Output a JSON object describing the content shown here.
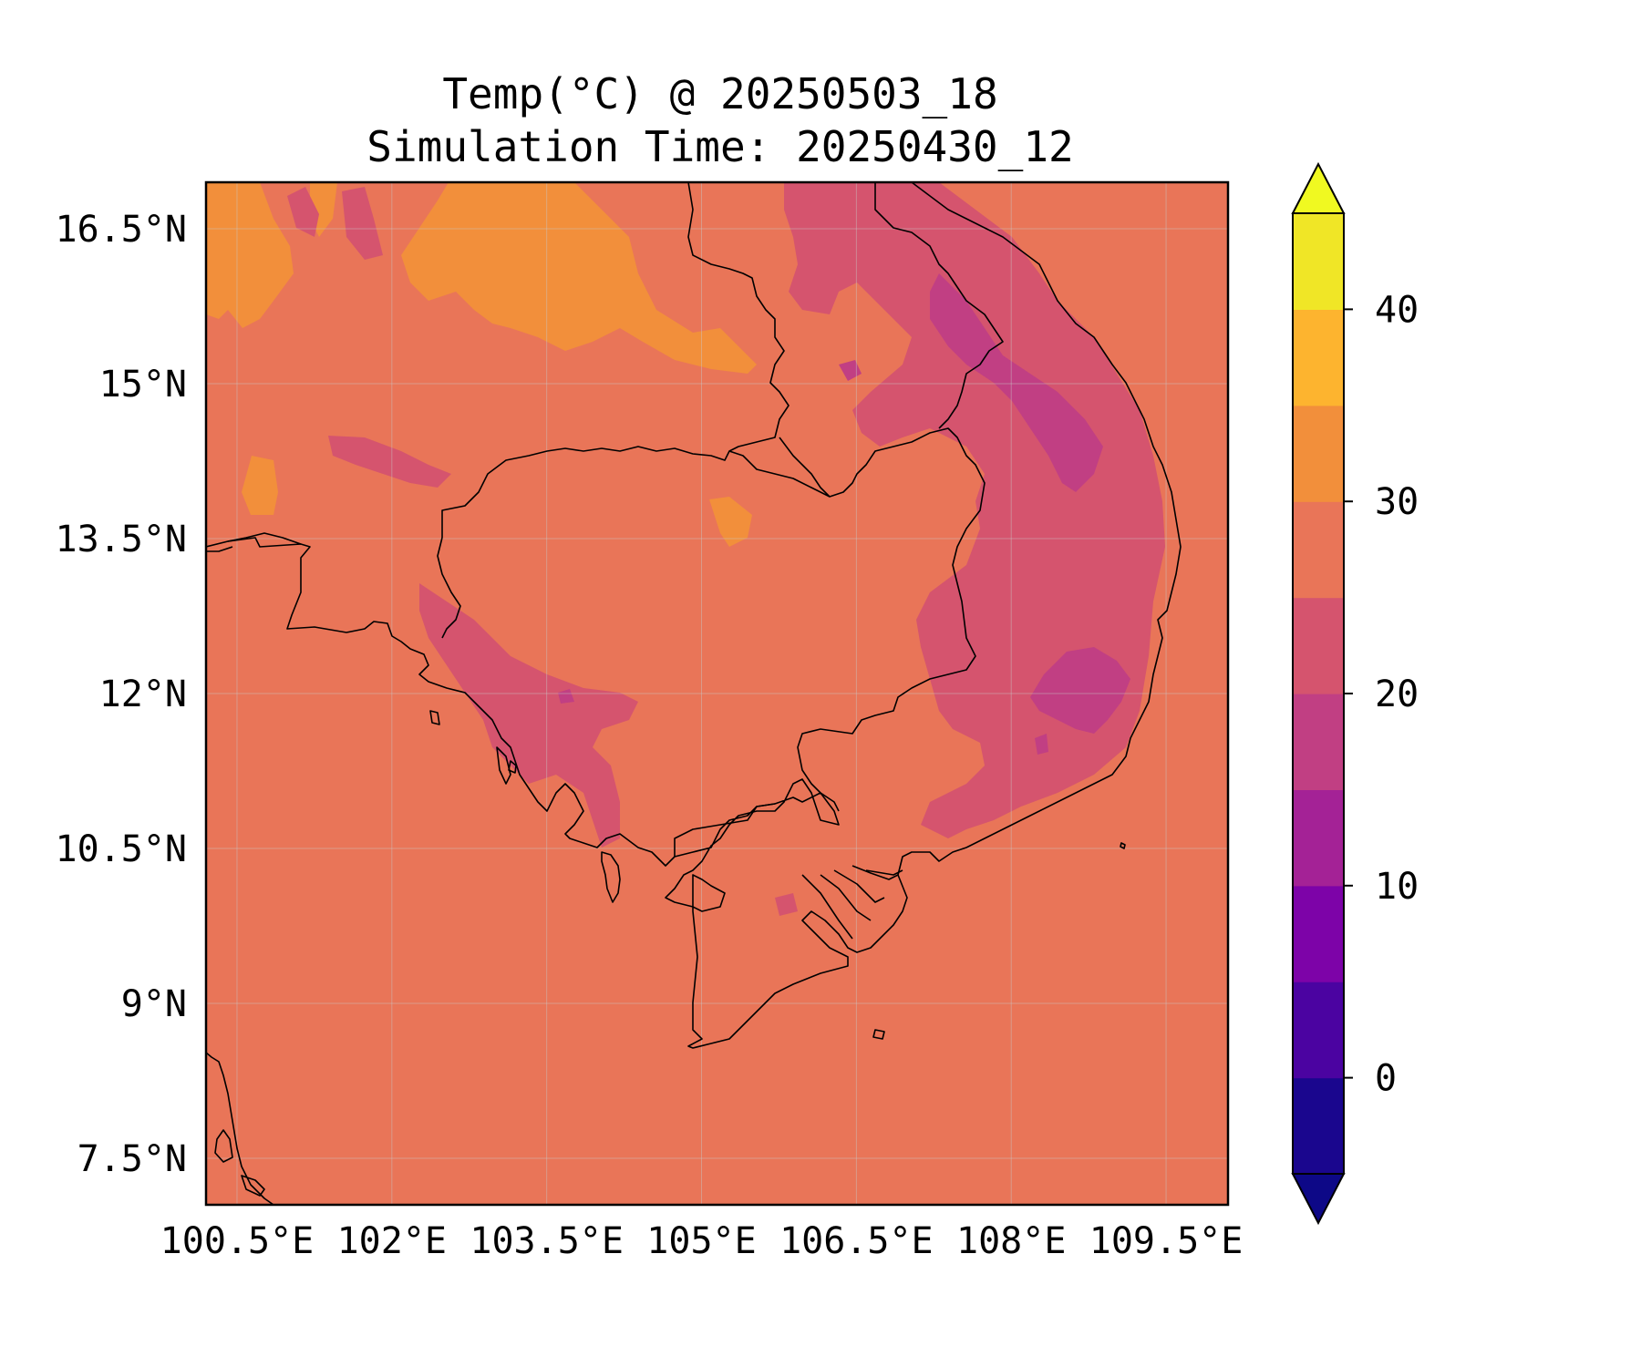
{
  "title": {
    "line1": "Temp(°C) @ 20250503_18",
    "line2": "Simulation Time: 20250430_12"
  },
  "map": {
    "domain": {
      "lon_min": 100.2,
      "lon_max": 110.1,
      "lat_min": 7.05,
      "lat_max": 16.95
    },
    "background_level_color": "#e97558",
    "colors": {
      "orange_30_35": "#f28f3b",
      "pink_20_25": "#d5546e",
      "magenta_15_20": "#c13f83",
      "coastline": "#000000",
      "gridline": "#c8c8c8"
    }
  },
  "x_ticks": [
    {
      "value": 100.5,
      "label": "100.5°E"
    },
    {
      "value": 102,
      "label": "102°E"
    },
    {
      "value": 103.5,
      "label": "103.5°E"
    },
    {
      "value": 105,
      "label": "105°E"
    },
    {
      "value": 106.5,
      "label": "106.5°E"
    },
    {
      "value": 108,
      "label": "108°E"
    },
    {
      "value": 109.5,
      "label": "109.5°E"
    }
  ],
  "y_ticks": [
    {
      "value": 16.5,
      "label": "16.5°N"
    },
    {
      "value": 15,
      "label": "15°N"
    },
    {
      "value": 13.5,
      "label": "13.5°N"
    },
    {
      "value": 12,
      "label": "12°N"
    },
    {
      "value": 10.5,
      "label": "10.5°N"
    },
    {
      "value": 9,
      "label": "9°N"
    },
    {
      "value": 7.5,
      "label": "7.5°N"
    }
  ],
  "colorbar": {
    "range": [
      -5,
      45
    ],
    "levels": [
      {
        "from": -5,
        "to": 0,
        "color": "#1a068e"
      },
      {
        "from": 0,
        "to": 5,
        "color": "#4b03a1"
      },
      {
        "from": 5,
        "to": 10,
        "color": "#7d03a8"
      },
      {
        "from": 10,
        "to": 15,
        "color": "#a42296"
      },
      {
        "from": 15,
        "to": 20,
        "color": "#c13f83"
      },
      {
        "from": 20,
        "to": 25,
        "color": "#d5546e"
      },
      {
        "from": 25,
        "to": 30,
        "color": "#e97558"
      },
      {
        "from": 30,
        "to": 35,
        "color": "#f28f3b"
      },
      {
        "from": 35,
        "to": 40,
        "color": "#fdb42f"
      },
      {
        "from": 40,
        "to": 45,
        "color": "#f0e626"
      }
    ],
    "extend_low_color": "#0d0887",
    "extend_high_color": "#f0f921",
    "ticks": [
      {
        "value": 0,
        "label": "0"
      },
      {
        "value": 10,
        "label": "10"
      },
      {
        "value": 20,
        "label": "20"
      },
      {
        "value": 30,
        "label": "30"
      },
      {
        "value": 40,
        "label": "40"
      }
    ]
  }
}
